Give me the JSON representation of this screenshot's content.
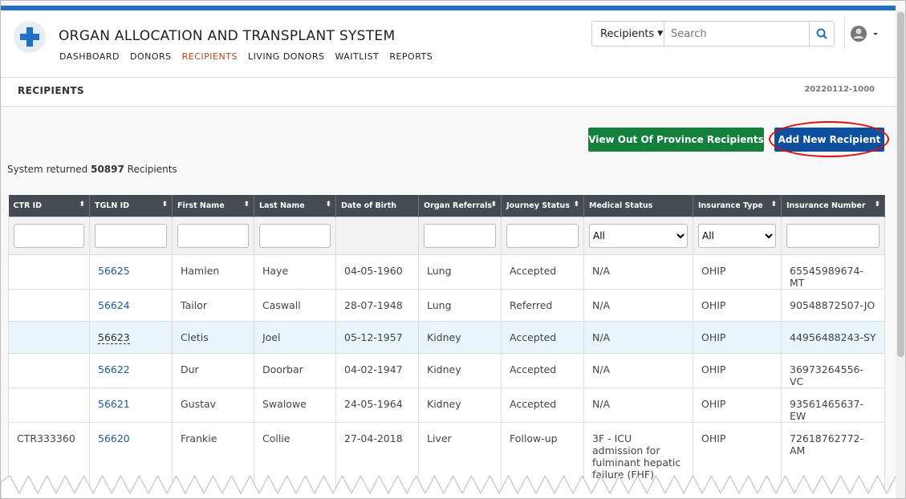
{
  "app": {
    "title": "ORGAN ALLOCATION AND TRANSPLANT SYSTEM",
    "nav": [
      "DASHBOARD",
      "DONORS",
      "RECIPIENTS",
      "LIVING DONORS",
      "WAITLIST",
      "REPORTS"
    ],
    "search_scope": "Recipients",
    "search_placeholder": "Search"
  },
  "page": {
    "title": "RECIPIENTS",
    "version": "20220112-1000"
  },
  "actions": [
    "View Out Of Province Recipients",
    "Add New Recipient"
  ],
  "summary": {
    "prefix": "System returned",
    "count": 50897,
    "suffix": "Recipients"
  },
  "table": {
    "columns": [
      "CTR ID",
      "TGLN ID",
      "First Name",
      "Last Name",
      "Date of Birth",
      "Organ Referrals",
      "Journey Status",
      "Medical Status",
      "Insurance Type",
      "Insurance Number"
    ],
    "medical_status_filter": "All",
    "insurance_type_filter": "All",
    "rows": [
      [
        null,
        "56625",
        "Hamlen",
        "Haye",
        "04-05-1960",
        "Lung",
        "Accepted",
        "N/A",
        "OHIP",
        "65545989674-MT"
      ],
      [
        null,
        "56624",
        "Tailor",
        "Caswall",
        "28-07-1948",
        "Lung",
        "Referred",
        "N/A",
        "OHIP",
        "90548872507-JO"
      ],
      [
        null,
        "56623",
        "Cletis",
        "Joel",
        "05-12-1957",
        "Kidney",
        "Accepted",
        "N/A",
        "OHIP",
        "44956488243-SY"
      ],
      [
        null,
        "56622",
        "Dur",
        "Doorbar",
        "04-02-1947",
        "Kidney",
        "Accepted",
        "N/A",
        "OHIP",
        "36973264556-VC"
      ],
      [
        null,
        "56621",
        "Gustav",
        "Swalowe",
        "24-05-1964",
        "Kidney",
        "Accepted",
        "N/A",
        "OHIP",
        "93561465637-EW"
      ],
      [
        "CTR333360",
        "56620",
        "Frankie",
        "Collie",
        "27-04-2018",
        "Liver",
        "Follow-up",
        "3F - ICU admission for fulminant hepatic failure (FHF)",
        "OHIP",
        "72618762772-AM"
      ]
    ]
  }
}
